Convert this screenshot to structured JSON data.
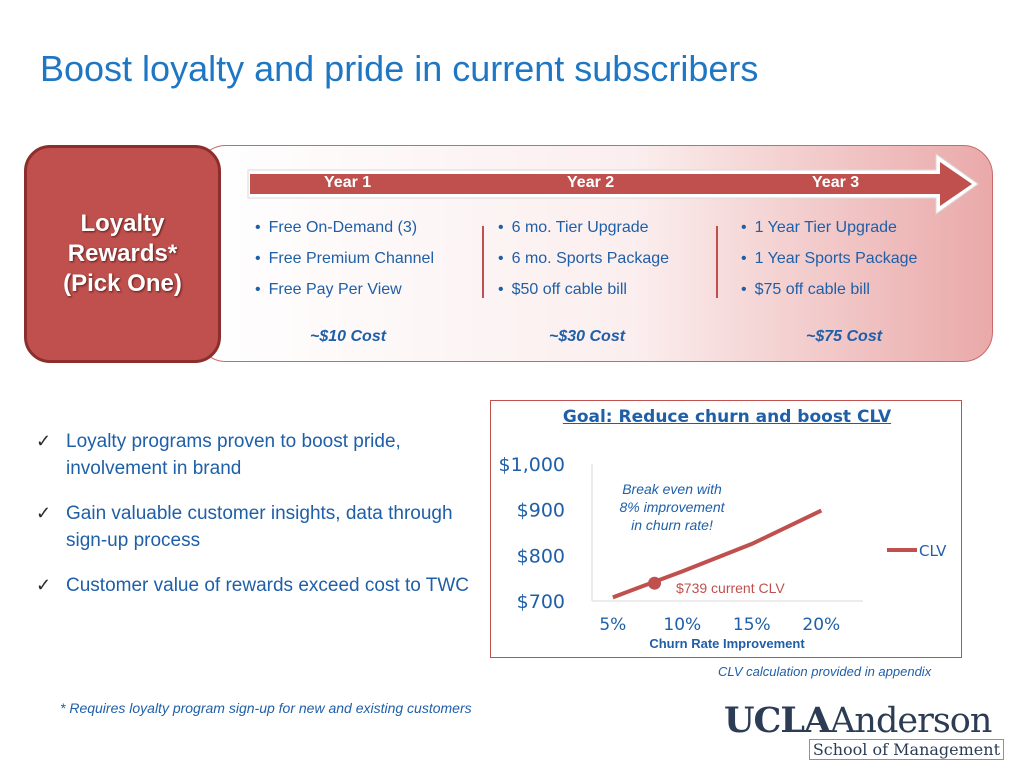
{
  "title": "Boost loyalty and pride in current subscribers",
  "loyalty": {
    "badge": "Loyalty\nRewards*\n(Pick One)",
    "years": [
      {
        "label": "Year 1",
        "items": [
          "Free On-Demand (3)",
          "Free Premium Channel",
          "Free Pay Per View"
        ],
        "cost_prefix": "~",
        "cost": "$10 Cost"
      },
      {
        "label": "Year 2",
        "items": [
          "6 mo. Tier Upgrade",
          "6 mo. Sports Package",
          "$50 off cable bill"
        ],
        "cost_prefix": "~",
        "cost": "$30 Cost"
      },
      {
        "label": "Year 3",
        "items": [
          "1 Year Tier Upgrade",
          "1 Year Sports Package",
          "$75 off cable bill"
        ],
        "cost_prefix": "~",
        "cost": "$75 Cost"
      }
    ],
    "arrow_color": "#c0504d"
  },
  "bullets": [
    "Loyalty programs proven to boost pride, involvement in brand",
    "Gain valuable customer insights, data through sign-up process",
    "Customer value of rewards exceed cost to TWC"
  ],
  "chart_data": {
    "type": "line",
    "title": "Goal: Reduce churn and boost CLV",
    "xlabel": "Churn Rate Improvement",
    "ylabel": "",
    "x_ticks": [
      "5%",
      "10%",
      "15%",
      "20%"
    ],
    "y_ticks": [
      "$700",
      "$800",
      "$900",
      "$1,000"
    ],
    "ylim": [
      700,
      1000
    ],
    "series": [
      {
        "name": "CLV",
        "color": "#c0504d",
        "x": [
          5,
          10,
          15,
          20
        ],
        "y": [
          708,
          765,
          825,
          898
        ]
      }
    ],
    "highlight_point": {
      "x": 8,
      "y": 739,
      "label": "$739 current CLV"
    },
    "annotation": "Break even with\n8% improvement\nin churn rate!",
    "legend_position": "right"
  },
  "footnote_chart": "CLV calculation provided in appendix",
  "footnote": "* Requires loyalty program sign-up for new and existing customers",
  "logo": {
    "ucla": "UCLA",
    "anderson": "Anderson",
    "sub": "School of Management"
  }
}
